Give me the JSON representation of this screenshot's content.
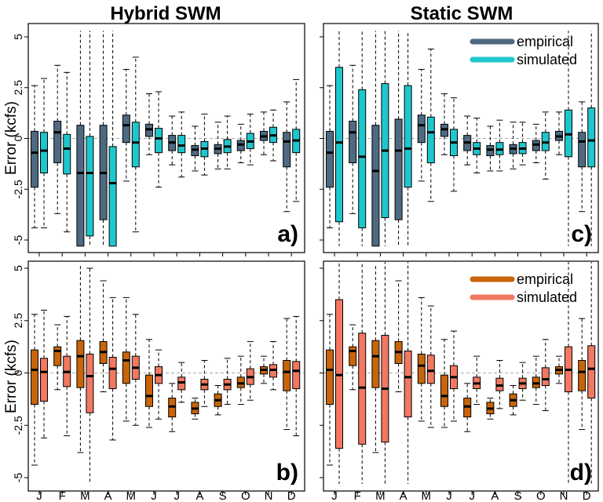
{
  "figure": {
    "col_titles": [
      "Hybrid SWM",
      "Static SWM"
    ],
    "ylabel": "Error (kcfs)"
  },
  "chart_data": {
    "type": "box",
    "ylim": [
      -5.2,
      5.2
    ],
    "yticks": [
      -5,
      -2.5,
      0,
      2.5,
      5
    ],
    "ytick_labels": [
      "-5",
      "-2.5",
      "0",
      "2.5",
      "5"
    ],
    "categories": [
      "J",
      "F",
      "M",
      "A",
      "M",
      "J",
      "J",
      "A",
      "S",
      "O",
      "N",
      "D"
    ],
    "zero_line": true,
    "panels": [
      {
        "letter": "a)",
        "row": 0,
        "col": 0,
        "legend": false,
        "series": [
          {
            "name": "empirical",
            "color": "#4e6a82",
            "boxes": [
              [
                -2.4,
                -0.7,
                0.35,
                -4.4,
                2.6
              ],
              [
                -1.2,
                0.3,
                0.85,
                -3.7,
                3.6
              ],
              [
                -5.3,
                -1.7,
                0.65,
                -5.3,
                5.3
              ],
              [
                -4.0,
                -1.7,
                0.65,
                -5.3,
                5.3
              ],
              [
                -0.2,
                0.65,
                1.15,
                -2.1,
                3.4
              ],
              [
                0.1,
                0.45,
                0.7,
                -0.8,
                2.2
              ],
              [
                -0.6,
                -0.2,
                0.15,
                -1.3,
                1.1
              ],
              [
                -0.85,
                -0.55,
                -0.35,
                -1.6,
                0.6
              ],
              [
                -0.75,
                -0.5,
                -0.3,
                -1.5,
                0.8
              ],
              [
                -0.6,
                -0.3,
                -0.1,
                -1.2,
                0.7
              ],
              [
                -0.1,
                0.1,
                0.35,
                -0.8,
                1.3
              ],
              [
                -1.4,
                -0.15,
                0.3,
                -3.6,
                1.8
              ]
            ]
          },
          {
            "name": "simulated",
            "color": "#1fc6cd",
            "boxes": [
              [
                -1.7,
                -0.6,
                0.3,
                -4.4,
                2.95
              ],
              [
                -1.75,
                -0.5,
                0.2,
                -4.6,
                3.25
              ],
              [
                -4.8,
                -1.7,
                0.1,
                -5.3,
                5.3
              ],
              [
                -5.3,
                -2.2,
                -0.4,
                -5.3,
                5.3
              ],
              [
                -1.4,
                -0.2,
                0.8,
                -4.6,
                4.0
              ],
              [
                -0.7,
                0.0,
                0.5,
                -2.4,
                2.3
              ],
              [
                -0.7,
                -0.35,
                0.15,
                -1.9,
                1.3
              ],
              [
                -0.9,
                -0.5,
                -0.15,
                -1.8,
                1.2
              ],
              [
                -0.7,
                -0.4,
                -0.05,
                -1.5,
                1.1
              ],
              [
                -0.5,
                -0.15,
                0.25,
                -1.3,
                1.2
              ],
              [
                -0.2,
                0.15,
                0.55,
                -1.1,
                1.4
              ],
              [
                -0.7,
                -0.1,
                0.45,
                -3.1,
                2.9
              ]
            ]
          }
        ]
      },
      {
        "letter": "c)",
        "row": 0,
        "col": 1,
        "legend": true,
        "series": [
          {
            "name": "empirical",
            "color": "#4e6a82",
            "boxes": [
              [
                -2.4,
                -0.7,
                0.35,
                -4.4,
                2.6
              ],
              [
                -1.2,
                0.3,
                0.85,
                -3.7,
                3.6
              ],
              [
                -5.3,
                -1.6,
                0.65,
                -5.3,
                5.3
              ],
              [
                -4.0,
                -0.6,
                0.95,
                -5.3,
                5.3
              ],
              [
                -0.2,
                0.65,
                1.15,
                -2.1,
                3.4
              ],
              [
                0.1,
                0.45,
                0.7,
                -0.8,
                2.2
              ],
              [
                -0.6,
                -0.2,
                0.15,
                -1.3,
                1.1
              ],
              [
                -0.85,
                -0.55,
                -0.35,
                -1.6,
                0.6
              ],
              [
                -0.75,
                -0.5,
                -0.3,
                -1.5,
                0.8
              ],
              [
                -0.6,
                -0.3,
                -0.1,
                -1.2,
                0.7
              ],
              [
                -0.1,
                0.1,
                0.35,
                -0.8,
                1.3
              ],
              [
                -1.4,
                -0.15,
                0.3,
                -3.6,
                1.8
              ]
            ]
          },
          {
            "name": "simulated",
            "color": "#1fc6cd",
            "boxes": [
              [
                -4.1,
                -0.2,
                3.5,
                -5.3,
                5.3
              ],
              [
                -4.4,
                -0.9,
                2.4,
                -5.3,
                5.3
              ],
              [
                -3.9,
                -0.6,
                2.7,
                -5.3,
                5.3
              ],
              [
                -2.4,
                -0.5,
                2.6,
                -5.3,
                5.3
              ],
              [
                -1.2,
                0.3,
                1.05,
                -3.1,
                4.4
              ],
              [
                -0.85,
                -0.2,
                0.45,
                -2.6,
                2.0
              ],
              [
                -0.8,
                -0.5,
                -0.2,
                -1.7,
                1.0
              ],
              [
                -0.8,
                -0.55,
                -0.2,
                -1.6,
                0.9
              ],
              [
                -0.75,
                -0.5,
                -0.2,
                -1.3,
                0.8
              ],
              [
                -0.6,
                -0.2,
                0.3,
                -2.0,
                1.3
              ],
              [
                -0.9,
                0.2,
                1.4,
                -5.3,
                5.3
              ],
              [
                -1.4,
                -0.1,
                1.5,
                -5.3,
                5.3
              ]
            ]
          }
        ]
      },
      {
        "letter": "b)",
        "row": 1,
        "col": 0,
        "legend": false,
        "series": [
          {
            "name": "empirical",
            "color": "#c8640a",
            "boxes": [
              [
                -1.5,
                0.15,
                1.1,
                -4.4,
                2.8
              ],
              [
                0.35,
                1.05,
                1.25,
                -0.8,
                2.3
              ],
              [
                -0.7,
                0.8,
                1.55,
                -3.8,
                5.2
              ],
              [
                0.45,
                1.0,
                1.5,
                -0.9,
                4.4
              ],
              [
                -0.5,
                0.6,
                1.0,
                -2.3,
                3.6
              ],
              [
                -1.6,
                -1.1,
                -0.1,
                -2.6,
                1.6
              ],
              [
                -2.1,
                -1.6,
                -1.2,
                -2.8,
                -0.5
              ],
              [
                -1.95,
                -1.7,
                -1.4,
                -2.2,
                -1.2
              ],
              [
                -1.6,
                -1.3,
                -1.0,
                -2.0,
                -0.6
              ],
              [
                -0.7,
                -0.5,
                -0.2,
                -1.5,
                0.8
              ],
              [
                -0.05,
                0.15,
                0.3,
                -0.5,
                0.8
              ],
              [
                -0.85,
                0.05,
                0.6,
                -2.7,
                2.6
              ]
            ]
          },
          {
            "name": "simulated",
            "color": "#f17861",
            "boxes": [
              [
                -1.35,
                0.05,
                0.7,
                -3.1,
                3.0
              ],
              [
                -0.65,
                0.05,
                0.8,
                -3.0,
                2.7
              ],
              [
                -1.9,
                -0.15,
                0.9,
                -5.3,
                5.0
              ],
              [
                -0.75,
                0.2,
                0.75,
                -3.2,
                3.6
              ],
              [
                -0.3,
                0.25,
                0.8,
                -2.5,
                2.8
              ],
              [
                -0.5,
                -0.1,
                0.3,
                -2.2,
                1.1
              ],
              [
                -0.8,
                -0.45,
                -0.2,
                -1.4,
                0.5
              ],
              [
                -0.8,
                -0.55,
                -0.3,
                -1.6,
                0.6
              ],
              [
                -0.8,
                -0.55,
                -0.3,
                -1.5,
                0.7
              ],
              [
                -0.55,
                -0.2,
                0.2,
                -1.3,
                1.5
              ],
              [
                -0.2,
                0.15,
                0.4,
                -0.8,
                1.5
              ],
              [
                -0.75,
                0.1,
                0.55,
                -3.0,
                2.7
              ]
            ]
          }
        ]
      },
      {
        "letter": "d)",
        "row": 1,
        "col": 1,
        "legend": true,
        "series": [
          {
            "name": "empirical",
            "color": "#c8640a",
            "boxes": [
              [
                -1.5,
                0.15,
                1.1,
                -4.4,
                2.8
              ],
              [
                0.35,
                1.05,
                1.25,
                -0.8,
                2.3
              ],
              [
                -0.7,
                0.8,
                1.55,
                -3.8,
                5.2
              ],
              [
                0.45,
                1.0,
                1.5,
                -0.9,
                4.4
              ],
              [
                -0.5,
                0.35,
                0.9,
                -2.3,
                3.6
              ],
              [
                -1.6,
                -1.1,
                -0.1,
                -2.6,
                1.6
              ],
              [
                -2.1,
                -1.6,
                -1.2,
                -2.8,
                -0.5
              ],
              [
                -1.95,
                -1.7,
                -1.4,
                -2.2,
                -1.2
              ],
              [
                -1.6,
                -1.3,
                -1.0,
                -2.0,
                -0.6
              ],
              [
                -0.7,
                -0.5,
                -0.2,
                -1.5,
                0.8
              ],
              [
                -0.05,
                0.15,
                0.3,
                -0.5,
                0.8
              ],
              [
                -0.85,
                0.05,
                0.6,
                -2.7,
                2.6
              ]
            ]
          },
          {
            "name": "simulated",
            "color": "#f17861",
            "boxes": [
              [
                -3.6,
                -0.1,
                3.5,
                -5.3,
                5.3
              ],
              [
                -3.4,
                -0.7,
                1.9,
                -5.3,
                5.3
              ],
              [
                -3.3,
                -0.75,
                1.8,
                -5.3,
                5.3
              ],
              [
                -2.1,
                -0.2,
                1.05,
                -5.3,
                5.3
              ],
              [
                -0.5,
                0.1,
                0.85,
                -2.6,
                3.2
              ],
              [
                -0.75,
                -0.2,
                0.35,
                -2.3,
                2.0
              ],
              [
                -0.75,
                -0.5,
                -0.2,
                -1.5,
                0.8
              ],
              [
                -0.85,
                -0.6,
                -0.25,
                -1.7,
                0.6
              ],
              [
                -0.75,
                -0.5,
                -0.25,
                -1.3,
                0.5
              ],
              [
                -0.6,
                -0.3,
                0.25,
                -1.8,
                1.6
              ],
              [
                -0.9,
                0.15,
                1.25,
                -5.3,
                5.3
              ],
              [
                -1.2,
                0.2,
                1.3,
                -5.3,
                5.3
              ]
            ]
          }
        ]
      }
    ]
  }
}
